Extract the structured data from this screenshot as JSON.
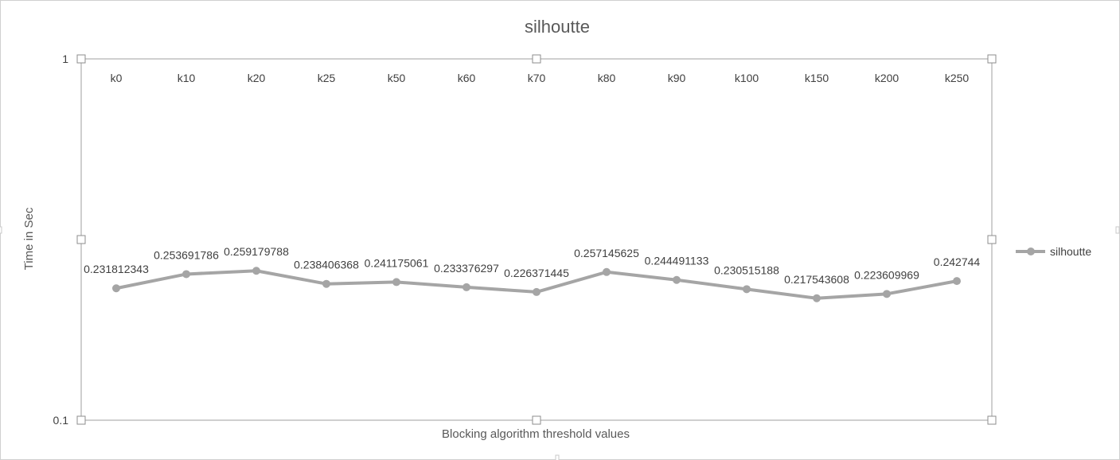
{
  "chart_data": {
    "type": "line",
    "title": "silhoutte",
    "xlabel": "Blocking algorithm threshold values",
    "ylabel": "Time in Sec",
    "y_scale": "log",
    "ylim": [
      0.1,
      1
    ],
    "y_ticks": [
      "0.1",
      "1"
    ],
    "categories": [
      "k0",
      "k10",
      "k20",
      "k25",
      "k50",
      "k60",
      "k70",
      "k80",
      "k90",
      "k100",
      "k150",
      "k200",
      "k250"
    ],
    "series": [
      {
        "name": "silhoutte",
        "color": "#a5a5a5",
        "values": [
          0.231812343,
          0.253691786,
          0.259179788,
          0.238406368,
          0.241175061,
          0.233376297,
          0.226371445,
          0.257145625,
          0.244491133,
          0.230515188,
          0.217543608,
          0.223609969,
          0.242744
        ],
        "labels": [
          "0.231812343",
          "0.253691786",
          "0.259179788",
          "0.238406368",
          "0.241175061",
          "0.233376297",
          "0.226371445",
          "0.257145625",
          "0.244491133",
          "0.230515188",
          "0.217543608",
          "0.223609969",
          "0.242744"
        ]
      }
    ],
    "legend_position": "right",
    "category_axis_position": "top"
  }
}
